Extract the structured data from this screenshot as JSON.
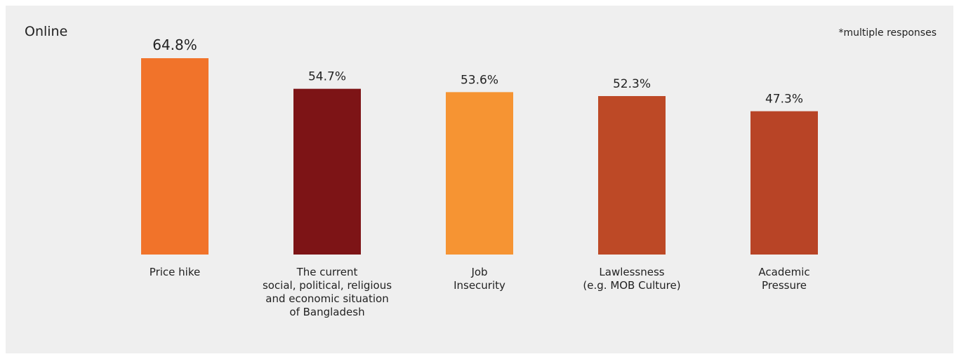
{
  "chart_data": {
    "type": "bar",
    "title": "Online",
    "note": "*multiple responses",
    "categories": [
      "Price hike",
      "The current\nsocial, political, religious\nand economic situation\nof Bangladesh",
      "Job\nInsecurity",
      "Lawlessness\n(e.g. MOB Culture)",
      "Academic\nPressure"
    ],
    "values": [
      64.8,
      54.7,
      53.6,
      52.3,
      47.3
    ],
    "value_labels": [
      "64.8%",
      "54.7%",
      "53.6%",
      "52.3%",
      "47.3%"
    ],
    "colors": [
      "#f1732a",
      "#7d1416",
      "#f69433",
      "#bd4926",
      "#b84426"
    ],
    "ylim": [
      0,
      64.8
    ],
    "grid": false,
    "legend": "none"
  }
}
